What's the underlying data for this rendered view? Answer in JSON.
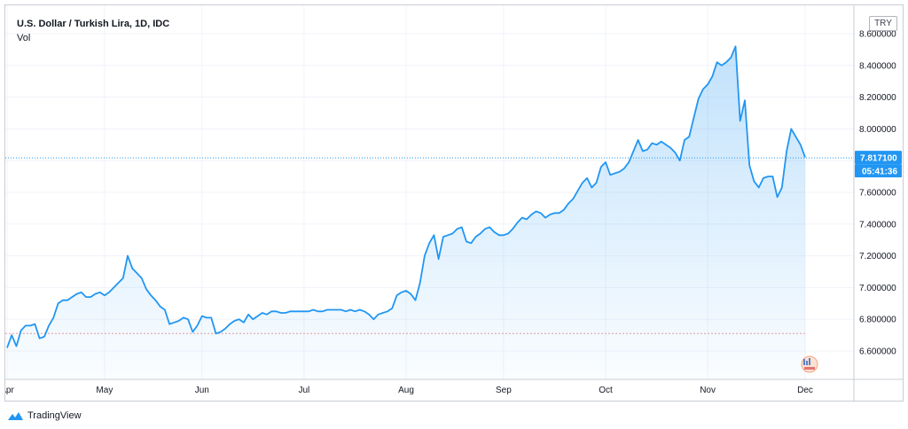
{
  "legend": {
    "title": "U.S. Dollar / Turkish Lira, 1D, IDC",
    "vol": "Vol"
  },
  "currency_badge": "TRY",
  "brand": {
    "name": "TradingView"
  },
  "last_price": {
    "label": "7.817100",
    "countdown": "05:41:36",
    "color": "#2196f3"
  },
  "line_color": "#2196f3",
  "reference_line_color": "#ef9a9a",
  "chart_data": {
    "type": "area",
    "title": "U.S. Dollar / Turkish Lira, 1D, IDC",
    "ylim": [
      6.42,
      8.66
    ],
    "yticks": [
      6.6,
      6.8,
      7.0,
      7.2,
      7.4,
      7.6,
      7.8,
      8.0,
      8.2,
      8.4,
      8.6
    ],
    "ytick_labels": [
      "6.600000",
      "6.800000",
      "7.000000",
      "7.200000",
      "7.400000",
      "7.600000",
      "7.800000",
      "8.000000",
      "8.200000",
      "8.400000",
      "8.600000"
    ],
    "x_ticks": [
      {
        "label": "Apr",
        "index": 0
      },
      {
        "label": "May",
        "index": 21
      },
      {
        "label": "Jun",
        "index": 42
      },
      {
        "label": "Jul",
        "index": 64
      },
      {
        "label": "Aug",
        "index": 86
      },
      {
        "label": "Sep",
        "index": 107
      },
      {
        "label": "Oct",
        "index": 129
      },
      {
        "label": "Nov",
        "index": 151
      },
      {
        "label": "Dec",
        "index": 172
      }
    ],
    "x_range": [
      0,
      180
    ],
    "grid": true,
    "reference_line": 6.71,
    "last_value": 7.8171,
    "values": [
      6.62,
      6.7,
      6.63,
      6.73,
      6.76,
      6.76,
      6.77,
      6.68,
      6.69,
      6.76,
      6.81,
      6.9,
      6.92,
      6.92,
      6.94,
      6.96,
      6.97,
      6.94,
      6.94,
      6.96,
      6.97,
      6.95,
      6.97,
      7.0,
      7.03,
      7.06,
      7.2,
      7.12,
      7.09,
      7.06,
      6.99,
      6.95,
      6.92,
      6.88,
      6.86,
      6.77,
      6.78,
      6.79,
      6.81,
      6.8,
      6.72,
      6.76,
      6.82,
      6.81,
      6.81,
      6.71,
      6.72,
      6.74,
      6.77,
      6.79,
      6.8,
      6.78,
      6.83,
      6.8,
      6.82,
      6.84,
      6.83,
      6.85,
      6.85,
      6.84,
      6.84,
      6.85,
      6.85,
      6.85,
      6.85,
      6.85,
      6.86,
      6.85,
      6.85,
      6.86,
      6.86,
      6.86,
      6.86,
      6.85,
      6.86,
      6.85,
      6.86,
      6.85,
      6.83,
      6.8,
      6.83,
      6.84,
      6.85,
      6.87,
      6.95,
      6.97,
      6.98,
      6.96,
      6.92,
      7.03,
      7.2,
      7.28,
      7.33,
      7.18,
      7.32,
      7.33,
      7.34,
      7.37,
      7.38,
      7.29,
      7.28,
      7.32,
      7.34,
      7.37,
      7.38,
      7.35,
      7.33,
      7.33,
      7.34,
      7.37,
      7.41,
      7.44,
      7.43,
      7.46,
      7.48,
      7.47,
      7.44,
      7.46,
      7.47,
      7.47,
      7.49,
      7.53,
      7.56,
      7.61,
      7.66,
      7.69,
      7.63,
      7.66,
      7.76,
      7.79,
      7.71,
      7.72,
      7.73,
      7.75,
      7.79,
      7.86,
      7.93,
      7.86,
      7.87,
      7.91,
      7.9,
      7.92,
      7.9,
      7.88,
      7.85,
      7.8,
      7.93,
      7.95,
      8.07,
      8.19,
      8.25,
      8.28,
      8.33,
      8.42,
      8.4,
      8.42,
      8.45,
      8.52,
      8.05,
      8.18,
      7.77,
      7.67,
      7.63,
      7.69,
      7.7,
      7.7,
      7.57,
      7.63,
      7.86,
      8.0,
      7.95,
      7.9,
      7.82
    ]
  }
}
